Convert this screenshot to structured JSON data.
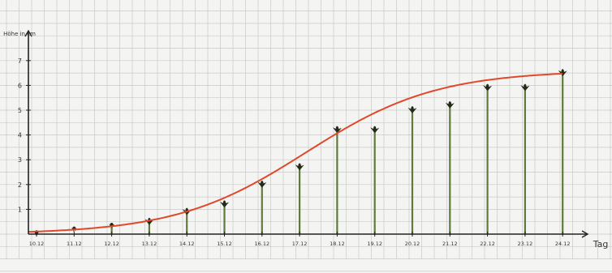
{
  "chart_data": {
    "type": "line",
    "ylabel": "Höhe in cm",
    "xlabel": "Tag",
    "ylim": [
      0,
      8
    ],
    "y_ticks": [
      "1",
      "2",
      "3",
      "4",
      "5",
      "6",
      "7"
    ],
    "grid": "on",
    "categories": [
      "10.12",
      "11.12",
      "12.12",
      "13.12",
      "14.12",
      "15.12",
      "16.12",
      "17.12",
      "18.12",
      "19.12",
      "20.12",
      "21.12",
      "22.12",
      "23.12",
      "24.12"
    ],
    "series": [
      {
        "values": [
          0.05,
          0.2,
          0.35,
          0.5,
          0.9,
          1.2,
          2.0,
          2.7,
          4.2,
          4.2,
          5.0,
          5.2,
          5.9,
          5.9,
          6.5
        ]
      }
    ],
    "colors": {
      "curve": "#e0482a",
      "axis": "#222222",
      "grid": "#c9c9c9",
      "stem": "#5f7b3c",
      "leaf": "#232a18",
      "paper": "#f4f4f2"
    }
  }
}
